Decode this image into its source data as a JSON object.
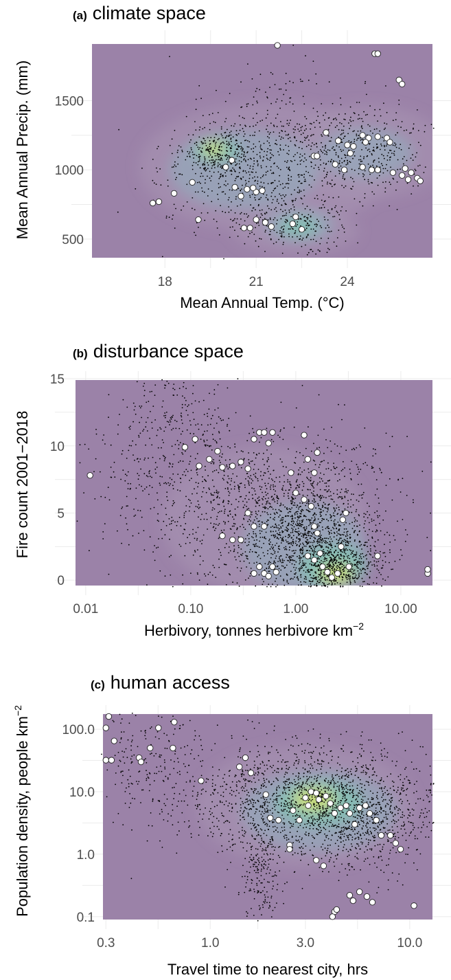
{
  "colors": {
    "background": "#9b82a8",
    "density_low": "#a795b3",
    "density_mid": "#8fb3bf",
    "density_high": "#7ccdb2",
    "density_peak": "#d8e46c",
    "gridline": "#ffffff",
    "point": "#000000",
    "circle_fill": "#ffffff",
    "circle_stroke": "#222222"
  },
  "chart_data": [
    {
      "id": "a",
      "type": "scatter",
      "panel_label": "(a)",
      "title": "climate space",
      "xlabel": "Mean Annual Temp. (°C)",
      "ylabel": "Mean Annual Precip. (mm)",
      "x_scale": "linear",
      "y_scale": "linear",
      "xlim": [
        15.6,
        26.8
      ],
      "ylim": [
        365,
        1910
      ],
      "x_ticks": [
        {
          "v": 18,
          "label": "18"
        },
        {
          "v": 21,
          "label": "21"
        },
        {
          "v": 24,
          "label": "24"
        }
      ],
      "y_ticks": [
        {
          "v": 500,
          "label": "500"
        },
        {
          "v": 1000,
          "label": "1000"
        },
        {
          "v": 1500,
          "label": "1500"
        }
      ],
      "grid": true,
      "density_blobs": [
        {
          "x": 21.3,
          "y": 1020,
          "sx": 3.2,
          "sy": 360,
          "level": 1
        },
        {
          "x": 24.6,
          "y": 1130,
          "sx": 2.1,
          "sy": 260,
          "level": 1
        },
        {
          "x": 22.3,
          "y": 560,
          "sx": 1.6,
          "sy": 130,
          "level": 1
        },
        {
          "x": 20.6,
          "y": 1000,
          "sx": 1.9,
          "sy": 220,
          "level": 2
        },
        {
          "x": 24.6,
          "y": 1120,
          "sx": 1.2,
          "sy": 140,
          "level": 2
        },
        {
          "x": 22.4,
          "y": 600,
          "sx": 0.9,
          "sy": 90,
          "level": 2
        },
        {
          "x": 19.7,
          "y": 1140,
          "sx": 0.6,
          "sy": 65,
          "level": 3
        },
        {
          "x": 22.4,
          "y": 590,
          "sx": 0.5,
          "sy": 55,
          "level": 3
        },
        {
          "x": 19.6,
          "y": 1150,
          "sx": 0.28,
          "sy": 35,
          "level": 4
        }
      ],
      "point_clusters": [
        {
          "x": 20.8,
          "y": 1000,
          "sx": 1.5,
          "sy": 230,
          "n": 700
        },
        {
          "x": 24.3,
          "y": 1140,
          "sx": 1.2,
          "sy": 170,
          "n": 450
        },
        {
          "x": 22.4,
          "y": 590,
          "sx": 0.9,
          "sy": 90,
          "n": 220
        },
        {
          "x": 19.8,
          "y": 1120,
          "sx": 0.5,
          "sy": 70,
          "n": 180
        },
        {
          "x": 22.0,
          "y": 1500,
          "sx": 1.6,
          "sy": 220,
          "n": 90
        }
      ],
      "highlighted_sites": [
        [
          17.8,
          770
        ],
        [
          17.6,
          760
        ],
        [
          18.3,
          830
        ],
        [
          18.9,
          910
        ],
        [
          19.1,
          640
        ],
        [
          20.3,
          875
        ],
        [
          20.7,
          860
        ],
        [
          21.0,
          840
        ],
        [
          20.5,
          810
        ],
        [
          20.9,
          870
        ],
        [
          21.2,
          850
        ],
        [
          20.6,
          580
        ],
        [
          20.8,
          580
        ],
        [
          21.0,
          640
        ],
        [
          21.3,
          620
        ],
        [
          21.5,
          590
        ],
        [
          20.2,
          1070
        ],
        [
          20.0,
          1020
        ],
        [
          21.7,
          1900
        ],
        [
          22.2,
          610
        ],
        [
          22.3,
          660
        ],
        [
          22.5,
          570
        ],
        [
          22.9,
          1100
        ],
        [
          23.0,
          1100
        ],
        [
          23.3,
          1270
        ],
        [
          23.6,
          1040
        ],
        [
          23.7,
          1210
        ],
        [
          24.0,
          1180
        ],
        [
          24.2,
          1170
        ],
        [
          24.5,
          1250
        ],
        [
          24.7,
          1230
        ],
        [
          25.0,
          1240
        ],
        [
          25.3,
          1230
        ],
        [
          24.5,
          1020
        ],
        [
          24.8,
          1000
        ],
        [
          25.0,
          1000
        ],
        [
          25.5,
          980
        ],
        [
          25.8,
          960
        ],
        [
          26.0,
          930
        ],
        [
          26.3,
          940
        ],
        [
          26.4,
          920
        ],
        [
          25.7,
          1650
        ],
        [
          25.8,
          1620
        ],
        [
          24.9,
          1840
        ],
        [
          25.0,
          1840
        ],
        [
          24.1,
          1120
        ],
        [
          23.9,
          1000
        ],
        [
          24.6,
          1200
        ],
        [
          25.4,
          1200
        ],
        [
          25.9,
          1010
        ],
        [
          26.1,
          980
        ]
      ]
    },
    {
      "id": "b",
      "type": "scatter",
      "panel_label": "(b)",
      "title": "disturbance space",
      "xlabel": "Herbivory, tonnes herbivore km",
      "xlabel_sup": "−2",
      "ylabel": "Fire count 2001−2018",
      "x_scale": "log10",
      "y_scale": "linear",
      "xlim": [
        0.008,
        20
      ],
      "ylim": [
        -0.4,
        14.9
      ],
      "x_ticks": [
        {
          "v": 0.01,
          "label": "0.01"
        },
        {
          "v": 0.1,
          "label": "0.10"
        },
        {
          "v": 1,
          "label": "1.00"
        },
        {
          "v": 10,
          "label": "10.00"
        }
      ],
      "y_ticks": [
        {
          "v": 0,
          "label": "0"
        },
        {
          "v": 5,
          "label": "5"
        },
        {
          "v": 10,
          "label": "10"
        },
        {
          "v": 15,
          "label": "15"
        }
      ],
      "grid": true,
      "density_blobs": [
        {
          "x": 0.5,
          "y": 4.5,
          "sx": 0.75,
          "sy": 4.2,
          "level": 1
        },
        {
          "x": 1.2,
          "y": 2.5,
          "sx": 0.45,
          "sy": 2.6,
          "level": 2
        },
        {
          "x": 2.3,
          "y": 1.0,
          "sx": 0.25,
          "sy": 1.3,
          "level": 3
        },
        {
          "x": 2.4,
          "y": 0.5,
          "sx": 0.12,
          "sy": 0.55,
          "level": 4
        }
      ],
      "point_clusters": [
        {
          "x": 0.6,
          "y": 5.0,
          "sx": 0.65,
          "sy": 3.0,
          "n": 1100
        },
        {
          "x": 1.3,
          "y": 3.0,
          "sx": 0.3,
          "sy": 2.2,
          "n": 900
        },
        {
          "x": 2.5,
          "y": 1.0,
          "sx": 0.2,
          "sy": 1.1,
          "n": 500
        },
        {
          "x": 0.07,
          "y": 12.5,
          "sx": 0.3,
          "sy": 1.5,
          "n": 160
        },
        {
          "x": 0.1,
          "y": 8.0,
          "sx": 0.5,
          "sy": 2.0,
          "n": 250
        }
      ],
      "highlighted_sites": [
        [
          0.011,
          7.8
        ],
        [
          0.088,
          9.9
        ],
        [
          0.11,
          10.5
        ],
        [
          0.12,
          8.5
        ],
        [
          0.15,
          9.0
        ],
        [
          0.18,
          9.6
        ],
        [
          0.2,
          8.4
        ],
        [
          0.25,
          8.5
        ],
        [
          0.3,
          8.8
        ],
        [
          0.35,
          8.3
        ],
        [
          0.45,
          11.0
        ],
        [
          0.5,
          11.0
        ],
        [
          0.6,
          11.0
        ],
        [
          0.4,
          10.5
        ],
        [
          0.55,
          10.2
        ],
        [
          0.45,
          1.0
        ],
        [
          0.5,
          0.5
        ],
        [
          0.6,
          1.0
        ],
        [
          0.55,
          0.3
        ],
        [
          0.4,
          0.5
        ],
        [
          0.65,
          0.6
        ],
        [
          0.3,
          3.0
        ],
        [
          0.25,
          3.0
        ],
        [
          0.2,
          3.3
        ],
        [
          0.35,
          5.0
        ],
        [
          0.4,
          4.0
        ],
        [
          0.5,
          4.0
        ],
        [
          0.9,
          8.0
        ],
        [
          1.0,
          6.5
        ],
        [
          1.2,
          10.8
        ],
        [
          1.3,
          9.0
        ],
        [
          1.5,
          8.0
        ],
        [
          1.6,
          9.5
        ],
        [
          1.2,
          6.0
        ],
        [
          1.4,
          5.5
        ],
        [
          1.5,
          4.0
        ],
        [
          1.6,
          3.5
        ],
        [
          1.3,
          1.8
        ],
        [
          1.5,
          1.5
        ],
        [
          1.8,
          1.0
        ],
        [
          2.0,
          0.6
        ],
        [
          2.2,
          0.2
        ],
        [
          2.5,
          0.5
        ],
        [
          2.8,
          4.5
        ],
        [
          3.0,
          5.0
        ],
        [
          3.2,
          1.0
        ],
        [
          6.0,
          1.8
        ],
        [
          18,
          0.5
        ],
        [
          18,
          0.8
        ],
        [
          1.7,
          2.0
        ],
        [
          2.7,
          2.5
        ]
      ]
    },
    {
      "id": "c",
      "type": "scatter",
      "panel_label": "(c)",
      "title": "human access",
      "xlabel": "Travel time to nearest city, hrs",
      "ylabel": "Population density, people km",
      "ylabel_sup": "−2",
      "x_scale": "log10",
      "y_scale": "log10",
      "xlim": [
        0.29,
        13
      ],
      "ylim": [
        0.09,
        175
      ],
      "x_ticks": [
        {
          "v": 0.3,
          "label": "0.3"
        },
        {
          "v": 1,
          "label": "1.0"
        },
        {
          "v": 3,
          "label": "3.0"
        },
        {
          "v": 10,
          "label": "10.0"
        }
      ],
      "y_ticks": [
        {
          "v": 0.1,
          "label": "0.1"
        },
        {
          "v": 1,
          "label": "1.0"
        },
        {
          "v": 10,
          "label": "10.0"
        },
        {
          "v": 100,
          "label": "100.0"
        }
      ],
      "grid": true,
      "density_blobs": [
        {
          "x": 3.0,
          "y": 6.0,
          "sx": 0.42,
          "sy": 0.75,
          "level": 1
        },
        {
          "x": 3.5,
          "y": 5.0,
          "sx": 0.3,
          "sy": 0.5,
          "level": 2
        },
        {
          "x": 3.5,
          "y": 6.5,
          "sx": 0.17,
          "sy": 0.28,
          "level": 3
        },
        {
          "x": 3.3,
          "y": 7.5,
          "sx": 0.08,
          "sy": 0.14,
          "level": 4
        }
      ],
      "point_clusters": [
        {
          "x": 3.0,
          "y": 8.0,
          "sx": 0.3,
          "sy": 0.45,
          "n": 1500
        },
        {
          "x": 6.0,
          "y": 3.0,
          "sx": 0.15,
          "sy": 0.4,
          "n": 500
        },
        {
          "x": 1.8,
          "y": 0.6,
          "sx": 0.05,
          "sy": 0.6,
          "n": 250
        },
        {
          "x": 0.5,
          "y": 30.0,
          "sx": 0.15,
          "sy": 0.55,
          "n": 220
        }
      ],
      "highlighted_sites": [
        [
          0.3,
          105
        ],
        [
          0.31,
          160
        ],
        [
          0.3,
          32
        ],
        [
          0.32,
          32
        ],
        [
          0.33,
          65
        ],
        [
          0.44,
          35
        ],
        [
          0.45,
          30
        ],
        [
          0.5,
          50
        ],
        [
          0.55,
          105
        ],
        [
          0.65,
          50
        ],
        [
          0.66,
          130
        ],
        [
          0.9,
          15
        ],
        [
          1.4,
          25
        ],
        [
          1.5,
          35
        ],
        [
          1.6,
          20
        ],
        [
          1.9,
          9
        ],
        [
          2.0,
          3.8
        ],
        [
          2.2,
          3.5
        ],
        [
          2.5,
          1.4
        ],
        [
          2.5,
          1.2
        ],
        [
          2.6,
          5
        ],
        [
          2.8,
          3.5
        ],
        [
          3.0,
          8.0
        ],
        [
          3.1,
          6.0
        ],
        [
          3.2,
          10
        ],
        [
          3.4,
          9.5
        ],
        [
          3.5,
          7.5
        ],
        [
          3.8,
          8.5
        ],
        [
          4.0,
          6.5
        ],
        [
          4.2,
          4.5
        ],
        [
          4.5,
          5.5
        ],
        [
          4.8,
          6.0
        ],
        [
          5.0,
          4.5
        ],
        [
          5.3,
          3.0
        ],
        [
          5.6,
          5.5
        ],
        [
          6.0,
          6.0
        ],
        [
          6.3,
          4.5
        ],
        [
          6.8,
          3.5
        ],
        [
          7.2,
          2.0
        ],
        [
          8.0,
          2.0
        ],
        [
          8.5,
          1.5
        ],
        [
          9.0,
          1.2
        ],
        [
          10.5,
          0.15
        ],
        [
          4.2,
          0.12
        ],
        [
          4.1,
          0.1
        ],
        [
          4.3,
          0.13
        ],
        [
          5.0,
          0.22
        ],
        [
          5.2,
          0.18
        ],
        [
          5.6,
          0.25
        ],
        [
          6.1,
          0.21
        ],
        [
          6.5,
          0.17
        ],
        [
          3.4,
          0.8
        ],
        [
          3.7,
          0.65
        ]
      ]
    }
  ]
}
